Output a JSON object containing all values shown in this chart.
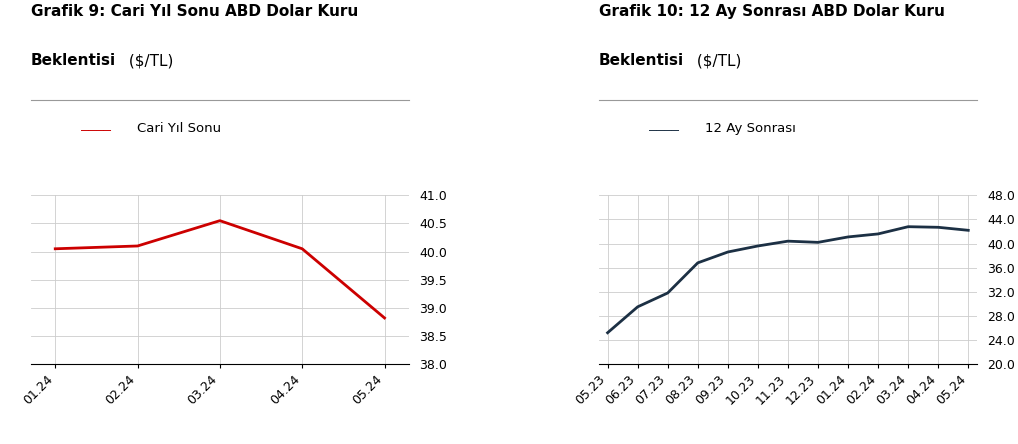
{
  "chart1": {
    "title_line1_bold": "Grafik 9: Cari Yıl Sonu ABD Dolar Kuru",
    "title_line2_bold": "Beklentisi",
    "title_line2_normal": " ($/TL)",
    "x_labels": [
      "01.24",
      "02.24",
      "03.24",
      "04.24",
      "05.24"
    ],
    "y_values": [
      40.05,
      40.1,
      40.55,
      40.05,
      38.82
    ],
    "y_min": 38.0,
    "y_max": 41.0,
    "y_ticks": [
      38.0,
      38.5,
      39.0,
      39.5,
      40.0,
      40.5,
      41.0
    ],
    "line_color": "#cc0000",
    "legend_label": "Cari Yıl Sonu"
  },
  "chart2": {
    "title_line1_bold": "Grafik 10: 12 Ay Sonrası ABD Dolar Kuru",
    "title_line2_bold": "Beklentisi",
    "title_line2_normal": " ($/TL)",
    "x_labels": [
      "05.23",
      "06.23",
      "07.23",
      "08.23",
      "09.23",
      "10.23",
      "11.23",
      "12.23",
      "01.24",
      "02.24",
      "03.24",
      "04.24",
      "05.24"
    ],
    "y_values": [
      25.2,
      29.5,
      31.8,
      36.8,
      38.6,
      39.6,
      40.4,
      40.2,
      41.1,
      41.6,
      42.8,
      42.7,
      42.2
    ],
    "y_min": 20.0,
    "y_max": 48.0,
    "y_ticks": [
      20.0,
      24.0,
      28.0,
      32.0,
      36.0,
      40.0,
      44.0,
      48.0
    ],
    "line_color": "#1c3044",
    "legend_label": "12 Ay Sonrası"
  },
  "background_color": "#ffffff",
  "grid_color": "#cccccc",
  "separator_color": "#999999",
  "title_fontsize": 11,
  "tick_fontsize": 9,
  "legend_fontsize": 9.5
}
